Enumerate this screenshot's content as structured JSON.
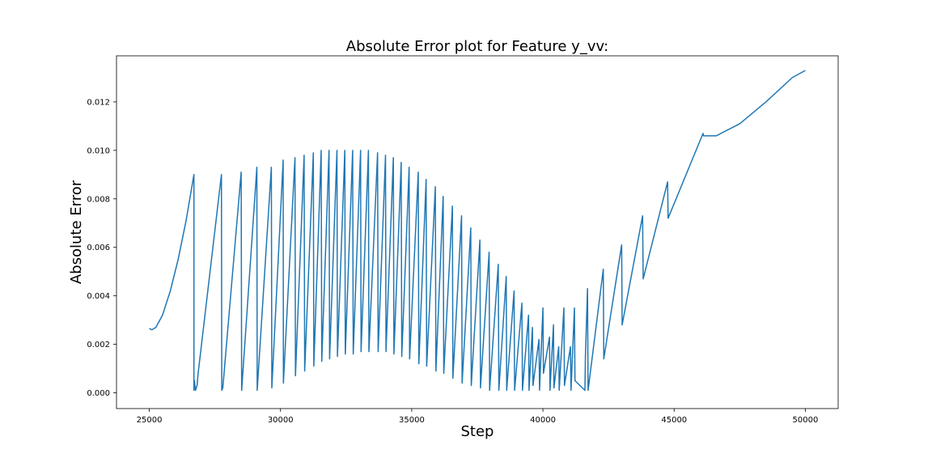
{
  "chart_data": {
    "type": "line",
    "title": "Absolute Error plot for Feature y_vv:",
    "xlabel": "Step",
    "ylabel": "Absolute Error",
    "xlim": [
      23750,
      51250
    ],
    "ylim": [
      -0.00065,
      0.0139
    ],
    "xticks": [
      25000,
      30000,
      35000,
      40000,
      45000,
      50000
    ],
    "yticks": [
      0.0,
      0.002,
      0.004,
      0.006,
      0.008,
      0.01,
      0.012
    ],
    "ytick_labels": [
      "0.000",
      "0.002",
      "0.004",
      "0.006",
      "0.008",
      "0.010",
      "0.012"
    ],
    "grid": false,
    "series": [
      {
        "color": "#1f77b4",
        "x": [
          25000,
          25100,
          25250,
          25500,
          25800,
          26100,
          26400,
          26700,
          26700,
          26720,
          26760,
          26820,
          26860,
          27750,
          27760,
          27800,
          28500,
          28520,
          29100,
          29110,
          29650,
          29670,
          30100,
          30110,
          30550,
          30570,
          30900,
          30920,
          31250,
          31270,
          31550,
          31570,
          31850,
          31870,
          32150,
          32170,
          32450,
          32470,
          32750,
          32770,
          33050,
          33070,
          33350,
          33370,
          33700,
          33720,
          34000,
          34020,
          34300,
          34320,
          34600,
          34620,
          34900,
          34920,
          35250,
          35270,
          35550,
          35570,
          35900,
          35920,
          36200,
          36220,
          36550,
          36570,
          36900,
          36920,
          37250,
          37270,
          37600,
          37620,
          37950,
          37970,
          38300,
          38320,
          38600,
          38620,
          38900,
          38920,
          39200,
          39220,
          39450,
          39470,
          39600,
          39620,
          39850,
          39870,
          40000,
          40020,
          40250,
          40270,
          40400,
          40420,
          40600,
          40620,
          40800,
          40820,
          41050,
          41070,
          41200,
          41220,
          41600,
          41620,
          41700,
          41720,
          42300,
          42320,
          43000,
          43020,
          43800,
          43820,
          44750,
          44770,
          46100,
          46120,
          46600,
          47500,
          48500,
          49500,
          50000
        ],
        "y": [
          0.00265,
          0.0026,
          0.0027,
          0.0032,
          0.0042,
          0.0055,
          0.0071,
          0.009,
          0.0001,
          0.0005,
          0.0001,
          0.0003,
          0.0008,
          0.009,
          0.0001,
          0.0002,
          0.0091,
          0.0001,
          0.0093,
          0.0001,
          0.0093,
          0.0002,
          0.0096,
          0.0004,
          0.0097,
          0.0007,
          0.0098,
          0.0009,
          0.0099,
          0.0011,
          0.01,
          0.0013,
          0.01,
          0.0014,
          0.01,
          0.0015,
          0.01,
          0.0016,
          0.01,
          0.0016,
          0.01,
          0.0017,
          0.01,
          0.0017,
          0.0099,
          0.0017,
          0.0098,
          0.0017,
          0.0097,
          0.0016,
          0.0095,
          0.0015,
          0.0093,
          0.0014,
          0.0091,
          0.0012,
          0.0088,
          0.0011,
          0.0085,
          0.0009,
          0.0081,
          0.0008,
          0.0077,
          0.0006,
          0.0073,
          0.0004,
          0.0068,
          0.0003,
          0.0063,
          0.0002,
          0.0058,
          0.0001,
          0.0053,
          0.0001,
          0.0048,
          0.0001,
          0.0042,
          0.0001,
          0.0037,
          0.0001,
          0.0032,
          0.0001,
          0.0027,
          0.0003,
          0.0022,
          0.0001,
          0.0035,
          0.0008,
          0.0023,
          0.0001,
          0.0028,
          0.0002,
          0.0019,
          0.0001,
          0.0035,
          0.0003,
          0.0019,
          0.0001,
          0.0035,
          0.0005,
          0.0001,
          0.0015,
          0.0043,
          0.0001,
          0.0051,
          0.0014,
          0.0061,
          0.0028,
          0.0073,
          0.0047,
          0.0087,
          0.0072,
          0.0107,
          0.0106,
          0.0106,
          0.0111,
          0.012,
          0.013,
          0.0133
        ]
      }
    ]
  }
}
